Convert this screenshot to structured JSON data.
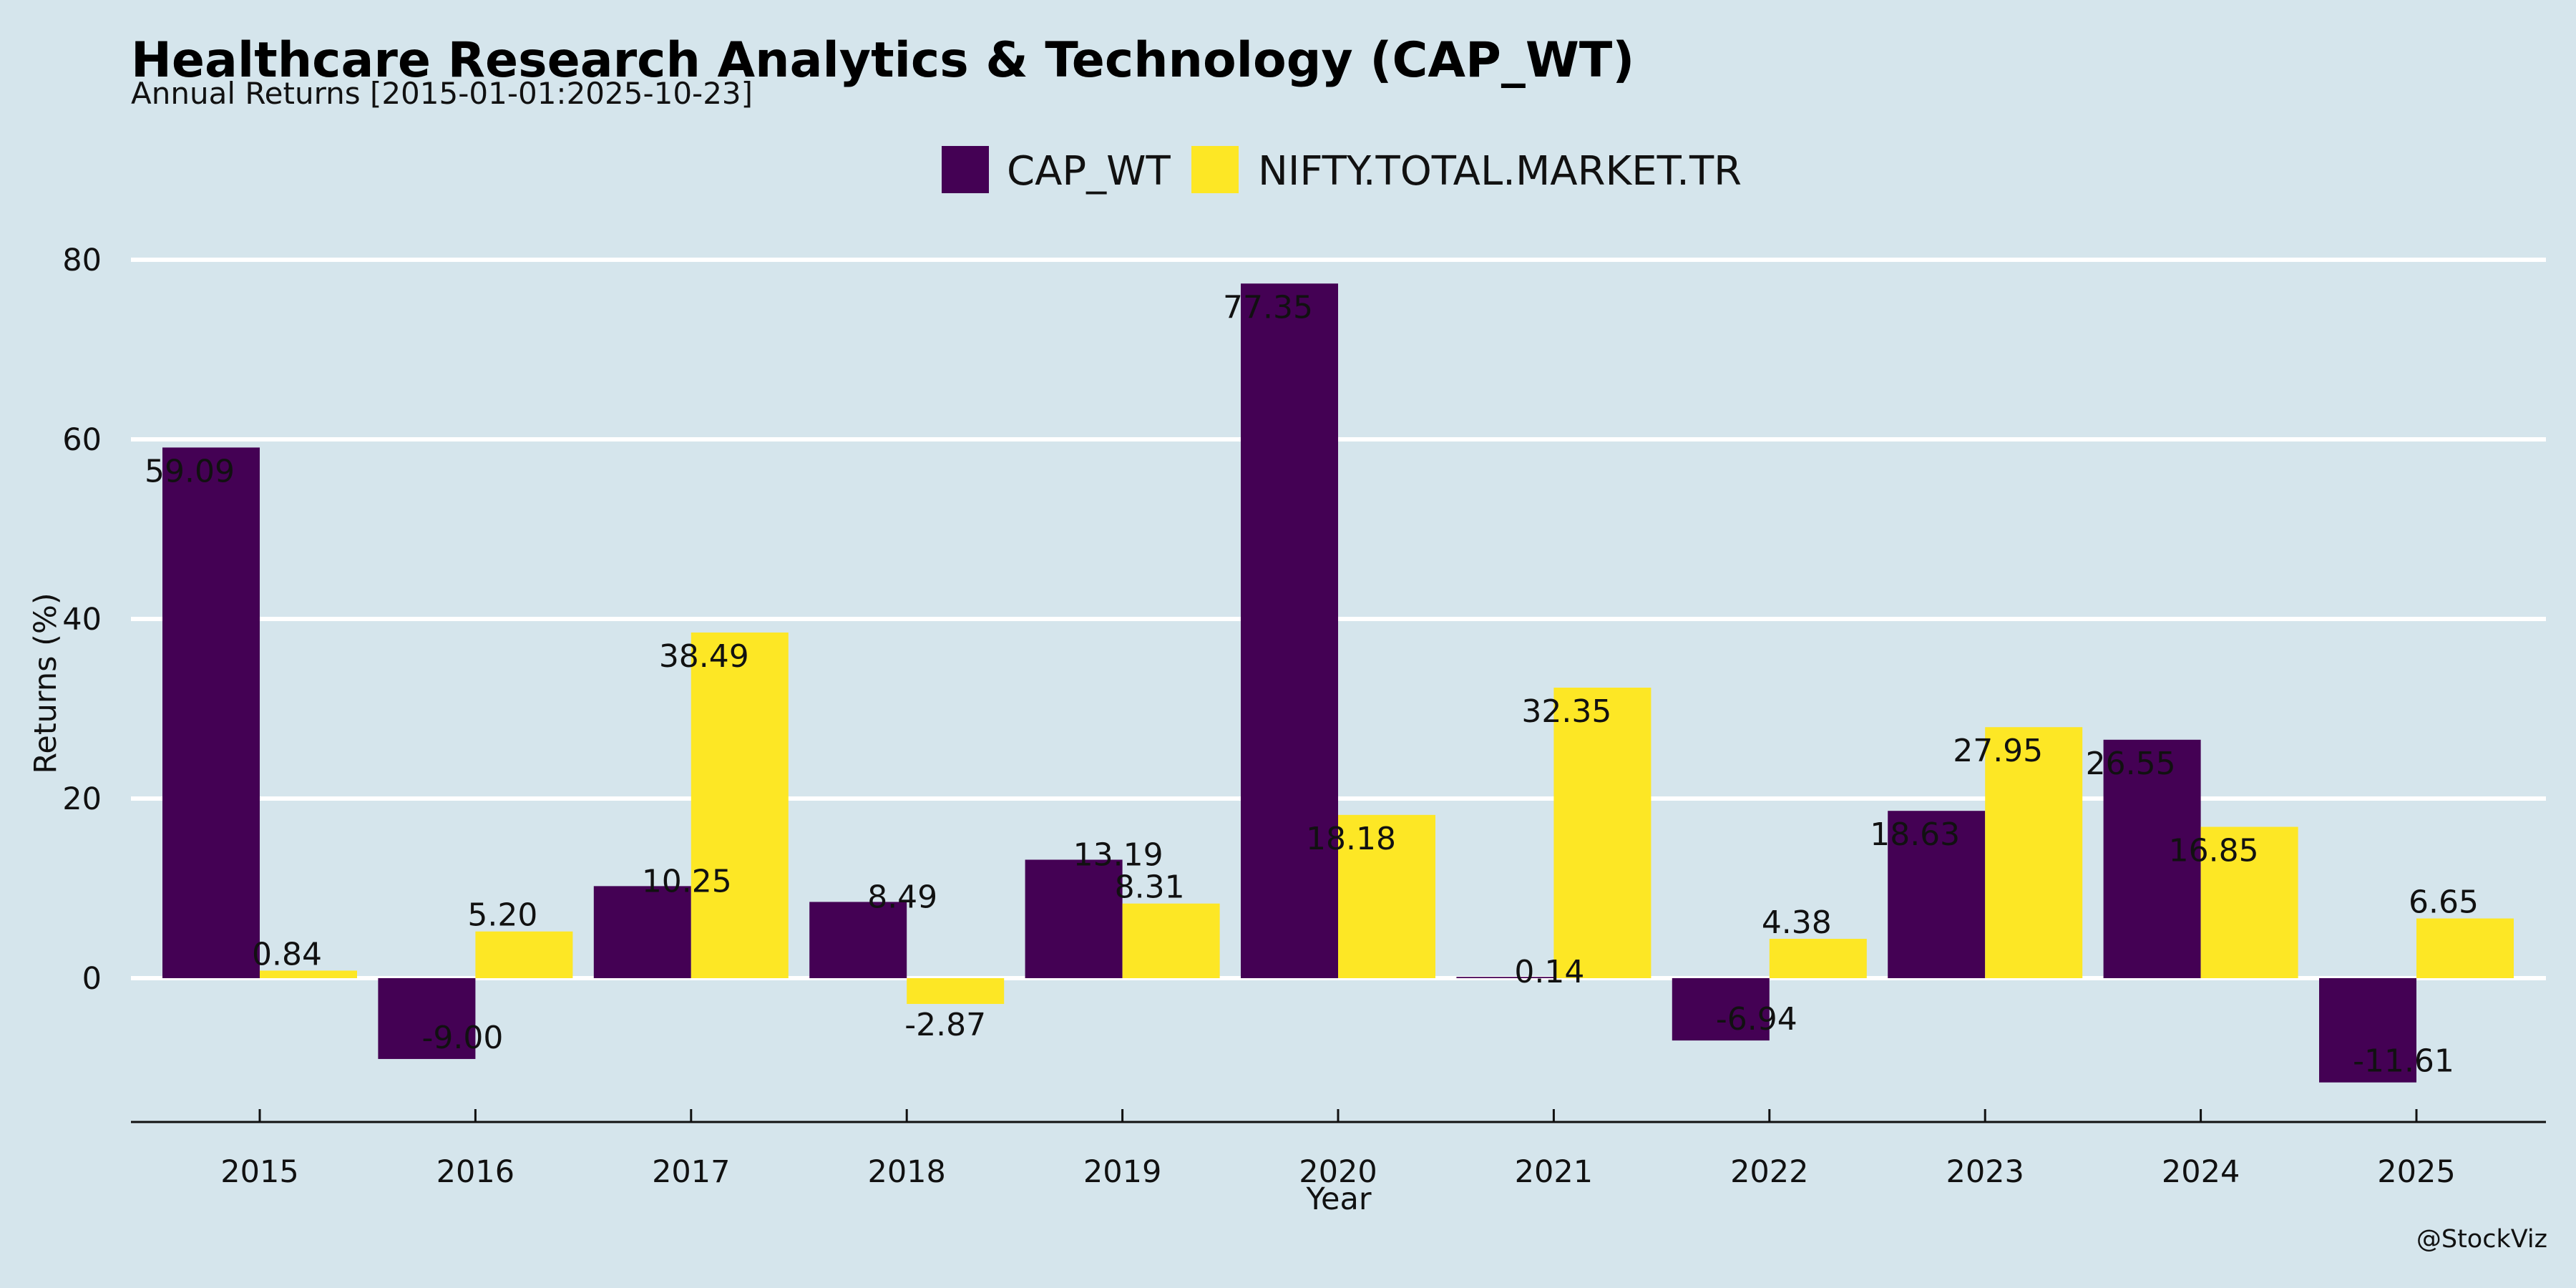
{
  "chart_data": {
    "type": "bar",
    "title": "Healthcare Research Analytics & Technology (CAP_WT)",
    "subtitle": "Annual Returns [2015-01-01:2025-10-23]",
    "xlabel": "Year",
    "ylabel": "Returns (%)",
    "categories": [
      "2015",
      "2016",
      "2017",
      "2018",
      "2019",
      "2020",
      "2021",
      "2022",
      "2023",
      "2024",
      "2025"
    ],
    "series": [
      {
        "name": "CAP_WT",
        "color": "#440154",
        "values": [
          59.09,
          -9.0,
          10.25,
          8.49,
          13.19,
          77.35,
          0.14,
          -6.94,
          18.63,
          26.55,
          -11.61
        ],
        "labels": [
          "59.09",
          "-9.00",
          "10.25",
          "8.49",
          "13.19",
          "77.35",
          "0.14",
          "-6.94",
          "18.63",
          "26.55",
          "-11.61"
        ]
      },
      {
        "name": "NIFTY.TOTAL.MARKET.TR",
        "color": "#fde725",
        "values": [
          0.84,
          5.2,
          38.49,
          -2.87,
          8.31,
          18.18,
          32.35,
          4.38,
          27.95,
          16.85,
          6.65
        ],
        "labels": [
          "0.84",
          "5.20",
          "38.49",
          "-2.87",
          "8.31",
          "18.18",
          "32.35",
          "4.38",
          "27.95",
          "16.85",
          "6.65"
        ]
      }
    ],
    "yticks": [
      0,
      20,
      40,
      60,
      80
    ],
    "ylim": [
      -16,
      80
    ],
    "grid": true,
    "legend_position": "top-center",
    "background_color": "#d5e5ec",
    "grid_color": "#ffffff"
  },
  "credit": "@StockViz"
}
